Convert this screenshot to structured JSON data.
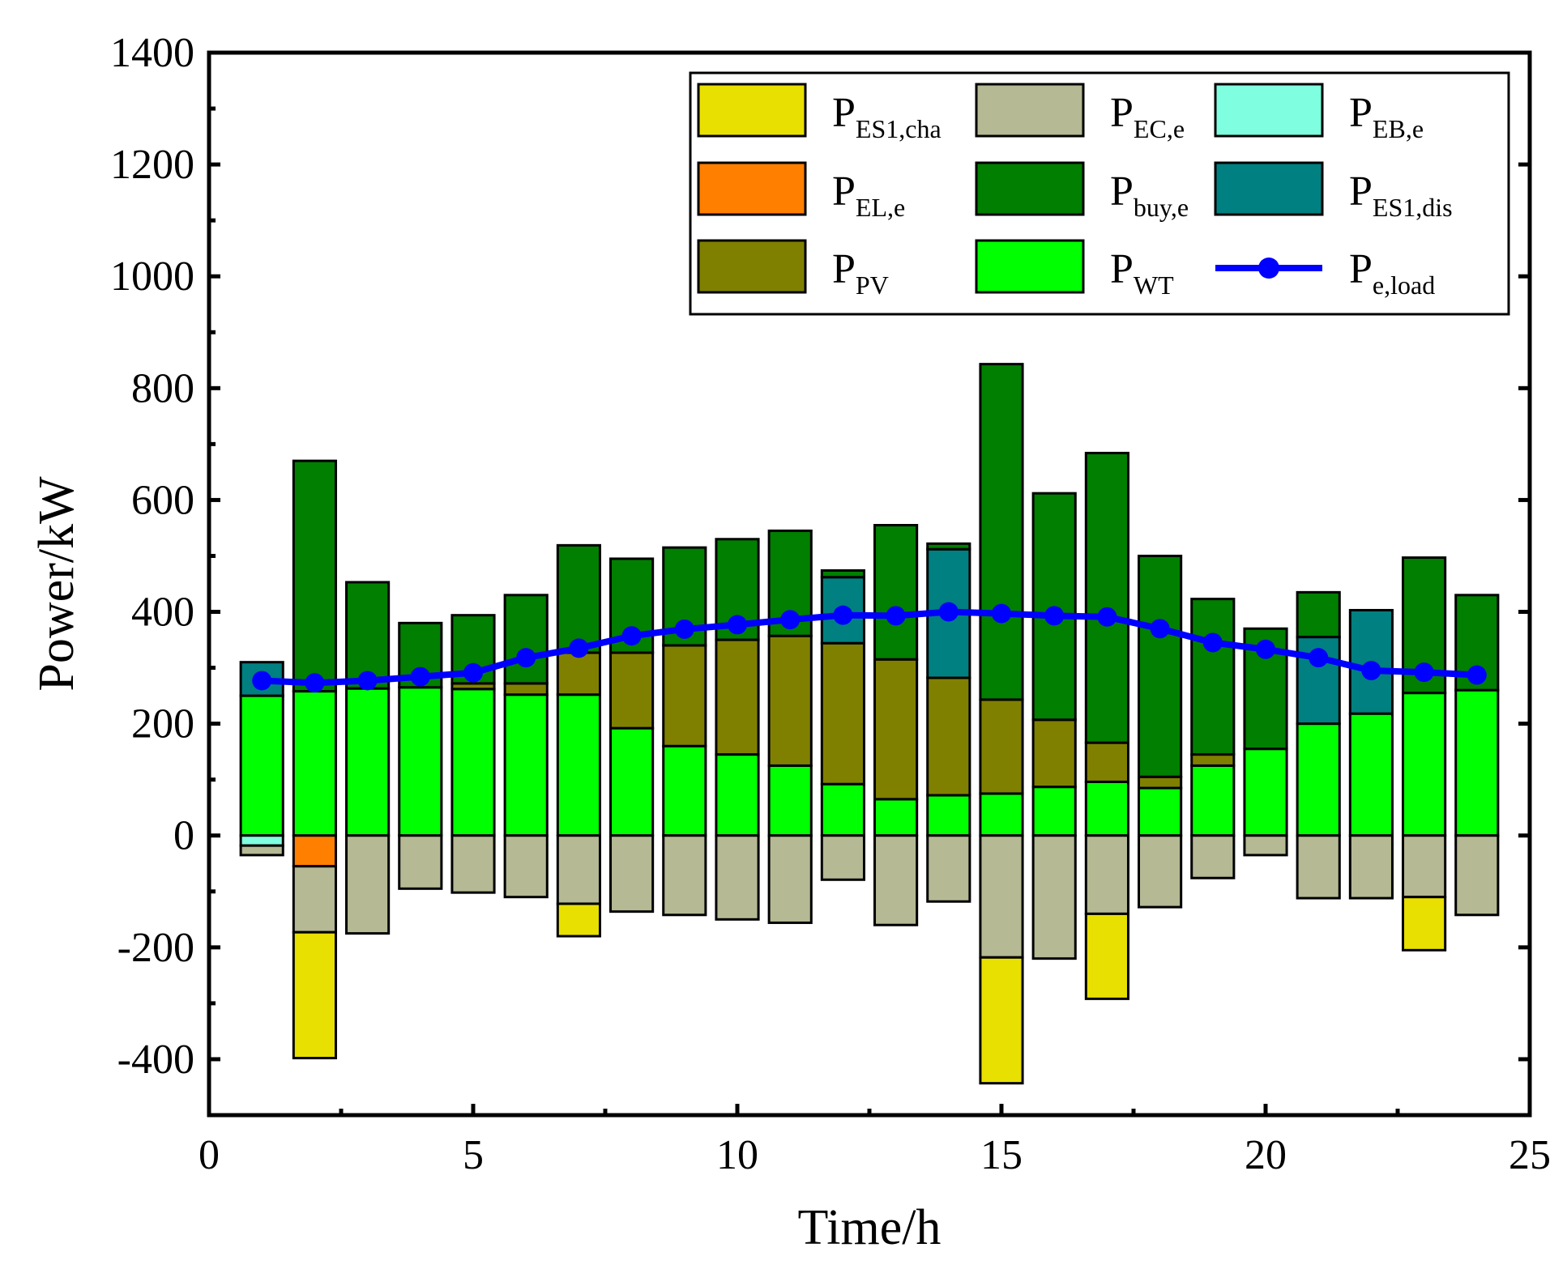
{
  "chart_data": {
    "type": "bar",
    "stacked": true,
    "title": "",
    "xlabel": "Time/h",
    "ylabel": "Power/kW",
    "xlim": [
      0,
      25
    ],
    "ylim": [
      -500,
      1400
    ],
    "x_ticks": [
      "0",
      "5",
      "10",
      "15",
      "20",
      "25"
    ],
    "y_ticks": [
      "-400",
      "-200",
      "0",
      "200",
      "400",
      "600",
      "800",
      "1000",
      "1200",
      "1400"
    ],
    "legend_position": "top-right",
    "x": [
      1,
      2,
      3,
      4,
      5,
      6,
      7,
      8,
      9,
      10,
      11,
      12,
      13,
      14,
      15,
      16,
      17,
      18,
      19,
      20,
      21,
      22,
      23,
      24
    ],
    "positive_series": [
      {
        "key": "wt",
        "name": "P",
        "sub": "WT",
        "color": "#00ff00",
        "values": [
          250,
          258,
          263,
          265,
          262,
          252,
          252,
          192,
          160,
          145,
          125,
          92,
          65,
          72,
          75,
          87,
          96,
          85,
          125,
          155,
          200,
          218,
          255,
          260
        ]
      },
      {
        "key": "pv",
        "name": "P",
        "sub": "PV",
        "color": "#808000",
        "values": [
          0,
          0,
          0,
          0,
          10,
          20,
          75,
          135,
          180,
          205,
          232,
          252,
          250,
          210,
          168,
          120,
          70,
          20,
          20,
          0,
          0,
          0,
          0,
          0
        ]
      },
      {
        "key": "es1dis",
        "name": "P",
        "sub": "ES1,dis",
        "color": "#008080",
        "values": [
          60,
          0,
          0,
          0,
          0,
          0,
          0,
          0,
          0,
          0,
          0,
          118,
          0,
          230,
          0,
          0,
          0,
          0,
          0,
          0,
          155,
          185,
          0,
          0
        ]
      },
      {
        "key": "buy",
        "name": "P",
        "sub": "buy,e",
        "color": "#007f00",
        "values": [
          0,
          412,
          190,
          115,
          122,
          158,
          192,
          168,
          175,
          180,
          188,
          12,
          240,
          10,
          600,
          405,
          518,
          395,
          278,
          215,
          80,
          0,
          242,
          170
        ]
      }
    ],
    "negative_series": [
      {
        "key": "eb",
        "name": "P",
        "sub": "EB,e",
        "color": "#80ffe0",
        "values": [
          -18,
          0,
          0,
          0,
          0,
          0,
          0,
          0,
          0,
          0,
          0,
          0,
          0,
          0,
          0,
          0,
          0,
          0,
          0,
          0,
          0,
          0,
          0,
          0
        ]
      },
      {
        "key": "el",
        "name": "P",
        "sub": "EL,e",
        "color": "#ff8000",
        "values": [
          0,
          -55,
          0,
          0,
          0,
          0,
          0,
          0,
          0,
          0,
          0,
          0,
          0,
          0,
          0,
          0,
          0,
          0,
          0,
          0,
          0,
          0,
          0,
          0
        ]
      },
      {
        "key": "ec",
        "name": "P",
        "sub": "EC,e",
        "color": "#b5b994",
        "values": [
          -17,
          -118,
          -175,
          -95,
          -102,
          -110,
          -122,
          -136,
          -142,
          -150,
          -156,
          -79,
          -160,
          -118,
          -218,
          -220,
          -140,
          -128,
          -76,
          -35,
          -112,
          -112,
          -110,
          -142
        ]
      },
      {
        "key": "es1cha",
        "name": "P",
        "sub": "ES1,cha",
        "color": "#e8e000",
        "values": [
          0,
          -225,
          0,
          0,
          0,
          0,
          -58,
          0,
          0,
          0,
          0,
          0,
          0,
          0,
          -225,
          0,
          -152,
          0,
          0,
          0,
          0,
          0,
          -95,
          0
        ]
      }
    ],
    "line_series": {
      "key": "load",
      "name": "P",
      "sub": "e,load",
      "color": "#0000ff",
      "values": [
        277,
        273,
        277,
        284,
        291,
        318,
        335,
        357,
        369,
        377,
        386,
        394,
        393,
        400,
        397,
        393,
        391,
        370,
        345,
        333,
        318,
        295,
        292,
        287
      ]
    },
    "legend_order": [
      "es1cha",
      "ec",
      "eb",
      "el",
      "buy",
      "es1dis",
      "pv",
      "wt",
      "load"
    ]
  }
}
